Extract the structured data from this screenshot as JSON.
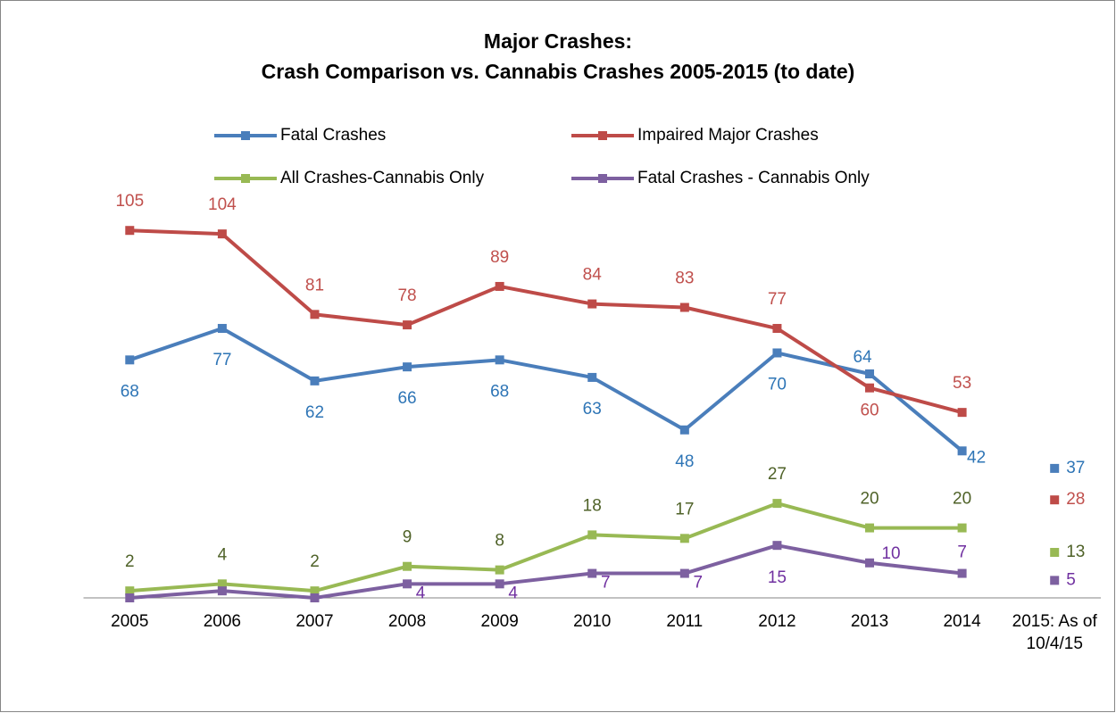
{
  "chart_data": {
    "type": "line",
    "title": [
      "Major Crashes:",
      "Crash Comparison vs. Cannabis Crashes 2005-2015 (to date)"
    ],
    "categories": [
      "2005",
      "2006",
      "2007",
      "2008",
      "2009",
      "2010",
      "2011",
      "2012",
      "2013",
      "2014",
      "2015: As of 10/4/15"
    ],
    "series": [
      {
        "name": "Fatal Crashes",
        "color": "#4a7ebb",
        "label_color": "#2e75b6",
        "values": [
          68,
          77,
          62,
          66,
          68,
          63,
          48,
          70,
          64,
          42,
          37
        ]
      },
      {
        "name": "Impaired Major Crashes",
        "color": "#be4b48",
        "label_color": "#c0504d",
        "values": [
          105,
          104,
          81,
          78,
          89,
          84,
          83,
          77,
          60,
          53,
          28
        ]
      },
      {
        "name": "All Crashes-Cannabis Only",
        "color": "#98b954",
        "label_color": "#4f6228",
        "values": [
          2,
          4,
          2,
          9,
          8,
          18,
          17,
          27,
          20,
          20,
          13
        ]
      },
      {
        "name": "Fatal Crashes - Cannabis Only",
        "color": "#7d60a0",
        "label_color": "#7030a0",
        "values": [
          0,
          2,
          0,
          4,
          4,
          7,
          7,
          15,
          10,
          7,
          5
        ],
        "value_labels": [
          null,
          null,
          null,
          4,
          4,
          7,
          7,
          15,
          10,
          7,
          5
        ]
      }
    ],
    "ylim": [
      0,
      115
    ]
  }
}
